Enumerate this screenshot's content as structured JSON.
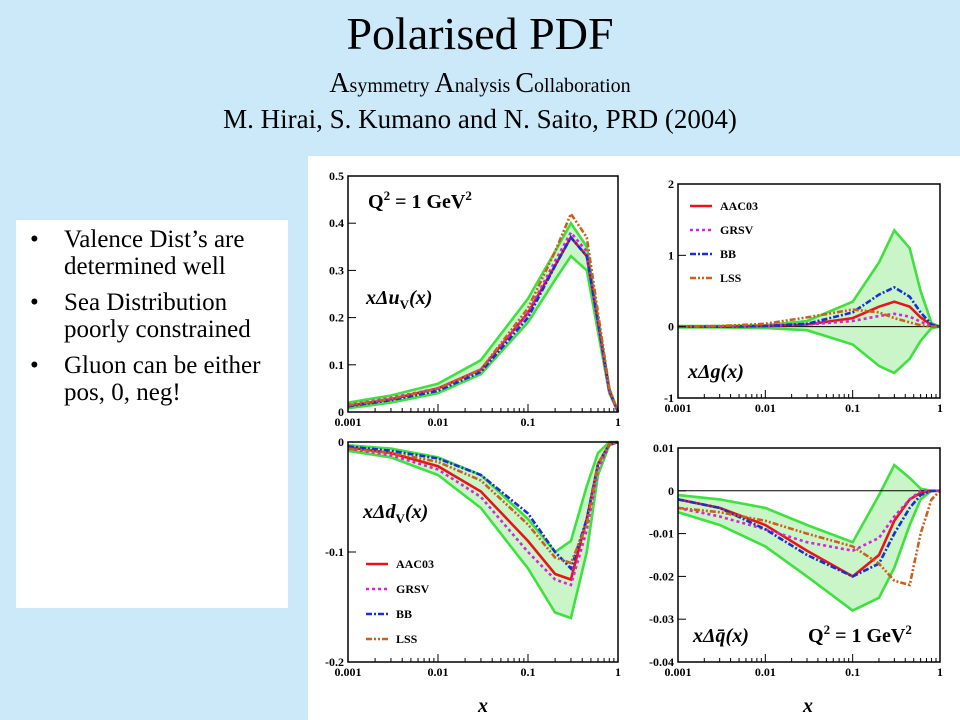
{
  "slide": {
    "title": "Polarised PDF",
    "collaboration": [
      {
        "cap": "A",
        "rest": "symmetry "
      },
      {
        "cap": "A",
        "rest": "nalysis "
      },
      {
        "cap": "C",
        "rest": "ollaboration"
      }
    ],
    "authors": "M. Hirai, S. Kumano and N. Saito, PRD (2004)"
  },
  "bullets": [
    "Valence Dist’s are determined well",
    "Sea Distribution poorly constrained",
    "Gluon can be either pos, 0, neg!"
  ],
  "colors": {
    "AAC03": "#e8141b",
    "GRSV": "#d426d4",
    "BB": "#1a2fd0",
    "LSS": "#c8621a",
    "band": "#3fe03f",
    "bandFill": "#c9f5c9"
  },
  "chart_data": [
    {
      "type": "line",
      "panel": "top-left",
      "ylabel_main": "xΔu",
      "ylabel_sub": "V",
      "ylabel_tail": "(x)",
      "annotation_q": "Q",
      "annotation_exp": "2",
      "annotation_tail": " = 1 GeV",
      "annotation_exp2": "2",
      "x_scale": "log",
      "xlim": [
        0.001,
        1
      ],
      "ylim": [
        0,
        0.5
      ],
      "xticks": [
        "0.001",
        "0.01",
        "0.1",
        "1"
      ],
      "yticks": [
        "0",
        "0.1",
        "0.2",
        "0.3",
        "0.4",
        "0.5"
      ],
      "x": [
        0.001,
        0.003,
        0.01,
        0.03,
        0.1,
        0.2,
        0.3,
        0.45,
        0.6,
        0.8,
        1
      ],
      "band_upper": [
        0.02,
        0.035,
        0.06,
        0.11,
        0.24,
        0.34,
        0.4,
        0.35,
        0.2,
        0.05,
        0
      ],
      "band_lower": [
        0.008,
        0.02,
        0.04,
        0.08,
        0.19,
        0.28,
        0.33,
        0.3,
        0.17,
        0.04,
        0
      ],
      "series": [
        {
          "name": "AAC03",
          "values": [
            0.013,
            0.027,
            0.05,
            0.09,
            0.21,
            0.31,
            0.37,
            0.33,
            0.19,
            0.045,
            0
          ]
        },
        {
          "name": "GRSV",
          "values": [
            0.015,
            0.03,
            0.05,
            0.09,
            0.21,
            0.32,
            0.38,
            0.34,
            0.19,
            0.045,
            0
          ]
        },
        {
          "name": "BB",
          "values": [
            0.012,
            0.025,
            0.045,
            0.085,
            0.2,
            0.31,
            0.37,
            0.33,
            0.19,
            0.045,
            0
          ]
        },
        {
          "name": "LSS",
          "values": [
            0.014,
            0.028,
            0.05,
            0.09,
            0.22,
            0.34,
            0.42,
            0.37,
            0.21,
            0.05,
            0
          ]
        }
      ]
    },
    {
      "type": "line",
      "panel": "top-right",
      "ylabel_main": "xΔg",
      "ylabel_sub": "",
      "ylabel_tail": "(x)",
      "x_scale": "log",
      "xlim": [
        0.001,
        1
      ],
      "ylim": [
        -1,
        2
      ],
      "xticks": [
        "0.001",
        "0.01",
        "0.1",
        "1"
      ],
      "yticks": [
        "-1",
        "0",
        "1",
        "2"
      ],
      "x": [
        0.001,
        0.003,
        0.01,
        0.03,
        0.1,
        0.2,
        0.3,
        0.45,
        0.6,
        0.8,
        1
      ],
      "band_upper": [
        0.01,
        0.01,
        0.02,
        0.08,
        0.35,
        0.9,
        1.35,
        1.1,
        0.5,
        0.05,
        0
      ],
      "band_lower": [
        -0.01,
        -0.01,
        -0.02,
        -0.05,
        -0.25,
        -0.55,
        -0.65,
        -0.45,
        -0.2,
        -0.02,
        0
      ],
      "series": [
        {
          "name": "AAC03",
          "values": [
            0,
            0,
            0.01,
            0.03,
            0.12,
            0.28,
            0.35,
            0.28,
            0.13,
            0.02,
            0
          ]
        },
        {
          "name": "GRSV",
          "values": [
            0,
            0,
            0.01,
            0.03,
            0.08,
            0.15,
            0.18,
            0.14,
            0.07,
            0.01,
            0
          ]
        },
        {
          "name": "BB",
          "values": [
            0,
            0,
            0.01,
            0.04,
            0.2,
            0.45,
            0.55,
            0.42,
            0.2,
            0.03,
            0
          ]
        },
        {
          "name": "LSS",
          "values": [
            0,
            0.01,
            0.04,
            0.13,
            0.24,
            0.2,
            0.12,
            0.06,
            0.02,
            0,
            0
          ]
        }
      ],
      "legend": [
        "AAC03",
        "GRSV",
        "BB",
        "LSS"
      ]
    },
    {
      "type": "line",
      "panel": "bottom-left",
      "ylabel_main": "xΔd",
      "ylabel_sub": "V",
      "ylabel_tail": "(x)",
      "x_scale": "log",
      "xlim": [
        0.001,
        1
      ],
      "ylim": [
        -0.2,
        0
      ],
      "xticks": [
        "0.001",
        "0.01",
        "0.1",
        "1"
      ],
      "yticks": [
        "-0.2",
        "-0.1",
        "0"
      ],
      "x": [
        0.001,
        0.003,
        0.01,
        0.03,
        0.1,
        0.2,
        0.3,
        0.45,
        0.6,
        0.8,
        1
      ],
      "band_upper": [
        -0.003,
        -0.006,
        -0.014,
        -0.03,
        -0.07,
        -0.1,
        -0.09,
        -0.04,
        -0.01,
        0,
        0
      ],
      "band_lower": [
        -0.008,
        -0.014,
        -0.03,
        -0.06,
        -0.115,
        -0.155,
        -0.16,
        -0.1,
        -0.03,
        -0.003,
        0
      ],
      "series": [
        {
          "name": "AAC03",
          "values": [
            -0.005,
            -0.01,
            -0.022,
            -0.045,
            -0.09,
            -0.12,
            -0.125,
            -0.07,
            -0.02,
            -0.002,
            0
          ]
        },
        {
          "name": "GRSV",
          "values": [
            -0.006,
            -0.012,
            -0.025,
            -0.05,
            -0.1,
            -0.125,
            -0.13,
            -0.08,
            -0.025,
            -0.003,
            0
          ]
        },
        {
          "name": "BB",
          "values": [
            -0.004,
            -0.008,
            -0.015,
            -0.03,
            -0.065,
            -0.1,
            -0.115,
            -0.07,
            -0.02,
            -0.002,
            0
          ]
        },
        {
          "name": "LSS",
          "values": [
            -0.006,
            -0.01,
            -0.018,
            -0.035,
            -0.075,
            -0.105,
            -0.11,
            -0.075,
            -0.02,
            -0.002,
            0
          ]
        }
      ],
      "legend": [
        "AAC03",
        "GRSV",
        "BB",
        "LSS"
      ]
    },
    {
      "type": "line",
      "panel": "bottom-right",
      "ylabel_main": "xΔq̄",
      "ylabel_sub": "",
      "ylabel_tail": "(x)",
      "annotation_q": "Q",
      "annotation_exp": "2",
      "annotation_tail": " = 1 GeV",
      "annotation_exp2": "2",
      "x_scale": "log",
      "xlim": [
        0.001,
        1
      ],
      "ylim": [
        -0.04,
        0.01
      ],
      "xticks": [
        "0.001",
        "0.01",
        "0.1",
        "1"
      ],
      "yticks": [
        "-0.04",
        "-0.03",
        "-0.02",
        "-0.01",
        "0",
        "0.01"
      ],
      "x": [
        0.001,
        0.003,
        0.01,
        0.03,
        0.1,
        0.2,
        0.3,
        0.45,
        0.6,
        0.8,
        1
      ],
      "band_upper": [
        -0.001,
        -0.002,
        -0.004,
        -0.008,
        -0.012,
        -0.001,
        0.006,
        0.003,
        0.0005,
        0,
        0
      ],
      "band_lower": [
        -0.005,
        -0.008,
        -0.013,
        -0.02,
        -0.028,
        -0.025,
        -0.018,
        -0.008,
        -0.002,
        0,
        0
      ],
      "series": [
        {
          "name": "AAC03",
          "values": [
            -0.002,
            -0.004,
            -0.008,
            -0.014,
            -0.02,
            -0.015,
            -0.007,
            -0.002,
            -0.0005,
            0,
            0
          ]
        },
        {
          "name": "GRSV",
          "values": [
            -0.004,
            -0.006,
            -0.009,
            -0.012,
            -0.014,
            -0.011,
            -0.006,
            -0.002,
            0,
            0,
            0
          ]
        },
        {
          "name": "BB",
          "values": [
            -0.002,
            -0.004,
            -0.009,
            -0.015,
            -0.02,
            -0.017,
            -0.01,
            -0.004,
            -0.001,
            0,
            0
          ]
        },
        {
          "name": "LSS",
          "values": [
            -0.004,
            -0.005,
            -0.007,
            -0.01,
            -0.013,
            -0.017,
            -0.021,
            -0.022,
            -0.01,
            -0.002,
            0
          ]
        }
      ]
    }
  ],
  "xaxis_label": "x"
}
